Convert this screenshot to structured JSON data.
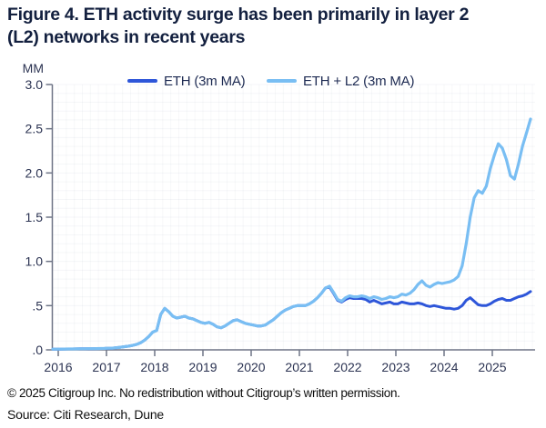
{
  "title_lines": [
    "Figure 4. ETH activity surge has been primarily in layer 2",
    "(L2) networks in recent years"
  ],
  "legend": [
    {
      "label": "ETH (3m MA)",
      "color": "#2e56d9"
    },
    {
      "label": "ETH + L2 (3m MA)",
      "color": "#79bef3"
    }
  ],
  "y_axis": {
    "unit": "MM",
    "tick_labels": [
      "3.0",
      "2.5",
      "2.0",
      "1.5",
      "1.0",
      ".5",
      ".0"
    ],
    "tick_values": [
      3,
      2.5,
      2,
      1.5,
      1,
      0.5,
      0
    ]
  },
  "x_axis": {
    "tick_labels": [
      "2016",
      "2017",
      "2018",
      "2019",
      "2020",
      "2021",
      "2022",
      "2023",
      "2024",
      "2025"
    ],
    "tick_values": [
      2016,
      2017,
      2018,
      2019,
      2020,
      2021,
      2022,
      2023,
      2024,
      2025
    ]
  },
  "footer": {
    "copyright": "© 2025 Citigroup Inc. No redistribution without Citigroup’s written permission.",
    "source": "Source: Citi Research, Dune"
  },
  "chart_data": {
    "type": "line",
    "title": "Figure 4. ETH activity surge has been primarily in layer 2 (L2) networks in recent years",
    "xlabel": "",
    "ylabel": "MM",
    "ylim": [
      0,
      3
    ],
    "xlim": [
      2015.9,
      2026.0
    ],
    "grid": "faint",
    "legend_position": "top",
    "x_start_year": 2016,
    "x_step_months": 1,
    "series": [
      {
        "name": "ETH (3m MA)",
        "color": "#2e56d9",
        "width": 3,
        "values": [
          0.008,
          0.009,
          0.01,
          0.01,
          0.011,
          0.012,
          0.012,
          0.013,
          0.013,
          0.014,
          0.015,
          0.016,
          0.018,
          0.02,
          0.025,
          0.03,
          0.036,
          0.042,
          0.05,
          0.062,
          0.08,
          0.11,
          0.15,
          0.2,
          0.22,
          0.4,
          0.47,
          0.43,
          0.38,
          0.36,
          0.37,
          0.38,
          0.36,
          0.35,
          0.33,
          0.31,
          0.3,
          0.31,
          0.29,
          0.26,
          0.25,
          0.27,
          0.3,
          0.33,
          0.34,
          0.32,
          0.3,
          0.29,
          0.28,
          0.27,
          0.27,
          0.28,
          0.31,
          0.34,
          0.38,
          0.42,
          0.45,
          0.47,
          0.49,
          0.5,
          0.5,
          0.5,
          0.52,
          0.55,
          0.59,
          0.64,
          0.7,
          0.71,
          0.64,
          0.56,
          0.54,
          0.57,
          0.59,
          0.58,
          0.58,
          0.58,
          0.57,
          0.54,
          0.56,
          0.54,
          0.52,
          0.53,
          0.54,
          0.52,
          0.52,
          0.54,
          0.53,
          0.52,
          0.52,
          0.53,
          0.52,
          0.5,
          0.49,
          0.5,
          0.49,
          0.48,
          0.47,
          0.47,
          0.46,
          0.47,
          0.5,
          0.56,
          0.59,
          0.55,
          0.51,
          0.5,
          0.5,
          0.52,
          0.55,
          0.57,
          0.58,
          0.56,
          0.56,
          0.58,
          0.6,
          0.61,
          0.63,
          0.66
        ]
      },
      {
        "name": "ETH + L2 (3m MA)",
        "color": "#79bef3",
        "width": 3.2,
        "values": [
          0.008,
          0.009,
          0.01,
          0.01,
          0.011,
          0.012,
          0.012,
          0.013,
          0.013,
          0.014,
          0.015,
          0.016,
          0.018,
          0.02,
          0.025,
          0.03,
          0.036,
          0.042,
          0.05,
          0.062,
          0.08,
          0.11,
          0.15,
          0.2,
          0.22,
          0.4,
          0.47,
          0.43,
          0.38,
          0.36,
          0.37,
          0.38,
          0.36,
          0.35,
          0.33,
          0.31,
          0.3,
          0.31,
          0.29,
          0.26,
          0.25,
          0.27,
          0.3,
          0.33,
          0.34,
          0.32,
          0.3,
          0.29,
          0.28,
          0.27,
          0.27,
          0.28,
          0.31,
          0.34,
          0.38,
          0.42,
          0.45,
          0.47,
          0.49,
          0.5,
          0.5,
          0.5,
          0.52,
          0.55,
          0.59,
          0.64,
          0.7,
          0.72,
          0.65,
          0.57,
          0.55,
          0.59,
          0.61,
          0.6,
          0.6,
          0.61,
          0.6,
          0.58,
          0.6,
          0.59,
          0.57,
          0.58,
          0.6,
          0.59,
          0.6,
          0.63,
          0.62,
          0.64,
          0.68,
          0.74,
          0.78,
          0.73,
          0.71,
          0.74,
          0.76,
          0.75,
          0.76,
          0.77,
          0.79,
          0.83,
          0.95,
          1.2,
          1.5,
          1.72,
          1.8,
          1.77,
          1.85,
          2.05,
          2.2,
          2.33,
          2.28,
          2.15,
          1.97,
          1.93,
          2.1,
          2.3,
          2.45,
          2.61
        ]
      }
    ]
  }
}
